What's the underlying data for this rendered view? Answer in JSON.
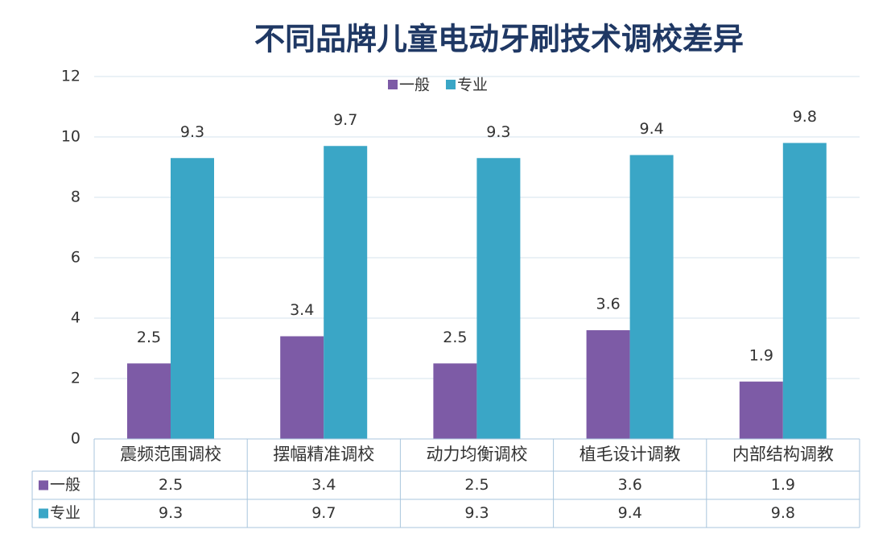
{
  "chart_data": {
    "type": "bar",
    "title": "不同品牌儿童电动牙刷技术调校差异",
    "categories": [
      "震频范围调校",
      "摆幅精准调校",
      "动力均衡调校",
      "植毛设计调教",
      "内部结构调教"
    ],
    "series": [
      {
        "name": "一般",
        "color": "#7d5ba6",
        "values": [
          2.5,
          3.4,
          2.5,
          3.6,
          1.9
        ]
      },
      {
        "name": "专业",
        "color": "#3aa6c6",
        "values": [
          9.3,
          9.7,
          9.3,
          9.4,
          9.8
        ]
      }
    ],
    "ylim": [
      0,
      12
    ],
    "yticks": [
      0,
      2,
      4,
      6,
      8,
      10,
      12
    ],
    "grid": true,
    "legend": "top",
    "data_table": true
  }
}
